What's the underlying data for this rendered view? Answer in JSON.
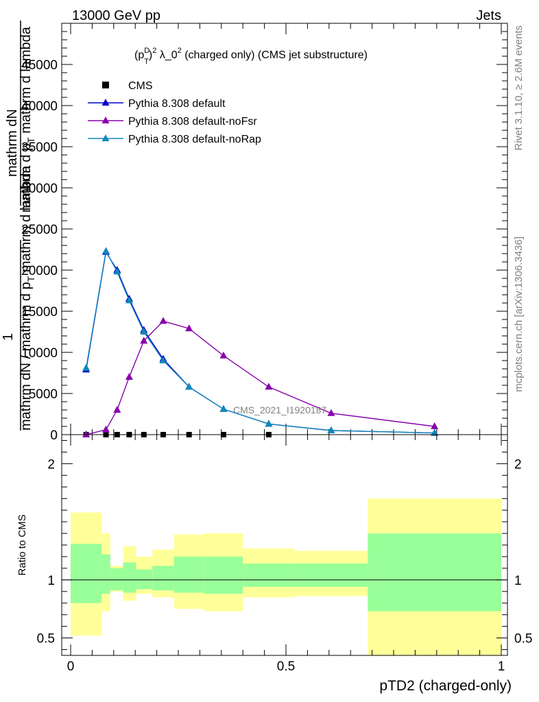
{
  "header": {
    "energy_label": "13000 GeV pp",
    "process_label": "Jets",
    "side_rivet": "Rivet 3.1.10, ≥ 2.6M events",
    "side_mcplots": "mcplots.cern.ch [arXiv:1306.3436]"
  },
  "chart_data": [
    {
      "type": "line",
      "title_main": "(p",
      "title_sup_D": "D",
      "title_sub_T": "T",
      "title_sup_2": "2",
      "title_mid": " λ_0",
      "title_rest": " (charged only) (CMS jet substructure)",
      "watermark": "CMS_2021_I1920187",
      "ylabel_num": "mathrm dN",
      "ylabel_den_1": "mathrm d p",
      "ylabel_den_sub": "T",
      "ylabel_den_2": " mathrm d lambda",
      "ylabel_left_1": "1",
      "ylabel_left_2": "mathrm dN / mathrm d p",
      "ylabel_left_sub": "T",
      "ylim": [
        0,
        50000
      ],
      "yticks": [
        0,
        5000,
        10000,
        15000,
        20000,
        25000,
        30000,
        35000,
        40000,
        45000
      ],
      "ytick_labels": [
        "0",
        "5000",
        "10000",
        "15000",
        "20000",
        "25000",
        "30000",
        "35000",
        "40000",
        "45000"
      ],
      "xlim": [
        0,
        1
      ],
      "legend": [
        {
          "label": "CMS",
          "color": "#000000",
          "marker": "square"
        },
        {
          "label": "Pythia 8.308 default",
          "color": "#0000cc",
          "marker": "triangle"
        },
        {
          "label": "Pythia 8.308 default-noFsr",
          "color": "#8800aa",
          "marker": "triangle"
        },
        {
          "label": "Pythia 8.308 default-noRap",
          "color": "#1188bb",
          "marker": "triangle"
        }
      ],
      "legend_position": "top-left",
      "series": [
        {
          "name": "CMS",
          "color": "#000000",
          "x": [
            0.036,
            0.082,
            0.108,
            0.136,
            0.17,
            0.215,
            0.275,
            0.355,
            0.46
          ],
          "y": [
            0,
            0,
            0,
            0,
            0,
            0,
            0,
            0,
            0
          ]
        },
        {
          "name": "Pythia 8.308 default",
          "color": "#0000cc",
          "x": [
            0.036,
            0.082,
            0.108,
            0.136,
            0.17,
            0.215,
            0.275,
            0.355,
            0.46,
            0.605,
            0.845
          ],
          "y": [
            7900,
            22200,
            20000,
            16500,
            12700,
            9200,
            5800,
            3100,
            1300,
            500,
            200
          ]
        },
        {
          "name": "Pythia 8.308 default-noFsr",
          "color": "#8800aa",
          "x": [
            0.036,
            0.082,
            0.108,
            0.136,
            0.17,
            0.215,
            0.275,
            0.355,
            0.46,
            0.605,
            0.845
          ],
          "y": [
            0,
            600,
            3000,
            7000,
            11400,
            13800,
            12900,
            9600,
            5800,
            2600,
            1000
          ]
        },
        {
          "name": "Pythia 8.308 default-noRap",
          "color": "#1188bb",
          "x": [
            0.036,
            0.082,
            0.108,
            0.136,
            0.17,
            0.215,
            0.275,
            0.355,
            0.46,
            0.605,
            0.845
          ],
          "y": [
            8100,
            22300,
            19800,
            16300,
            12500,
            9000,
            5800,
            3100,
            1300,
            500,
            200
          ]
        }
      ]
    },
    {
      "type": "area",
      "ylabel": "Ratio to CMS",
      "ylim": [
        0.35,
        2.25
      ],
      "yticks": [
        0.5,
        1,
        2
      ],
      "ytick_labels": [
        "0.5",
        "1",
        "2"
      ],
      "xlim": [
        0,
        1
      ],
      "xticks": [
        0,
        0.5,
        1
      ],
      "xtick_labels": [
        "0",
        "0.5",
        "1"
      ],
      "xlabel": "pTD2 (charged-only)",
      "reference_line": 1,
      "bands": {
        "bin_edges": [
          0.0,
          0.072,
          0.092,
          0.122,
          0.152,
          0.19,
          0.24,
          0.31,
          0.4,
          0.52,
          0.69,
          1.0
        ],
        "green_upper": [
          1.31,
          1.22,
          1.1,
          1.15,
          1.09,
          1.12,
          1.2,
          1.2,
          1.14,
          1.14,
          1.4
        ],
        "green_lower": [
          0.8,
          0.88,
          0.91,
          0.89,
          0.92,
          0.91,
          0.89,
          0.88,
          0.94,
          0.94,
          0.73
        ],
        "yellow_upper": [
          1.58,
          1.4,
          1.12,
          1.29,
          1.2,
          1.26,
          1.39,
          1.4,
          1.27,
          1.25,
          1.7
        ],
        "yellow_lower": [
          0.52,
          0.73,
          0.9,
          0.82,
          0.88,
          0.85,
          0.75,
          0.73,
          0.85,
          0.86,
          0.3
        ],
        "green_color": "#99ff99",
        "yellow_color": "#ffff99"
      }
    }
  ]
}
